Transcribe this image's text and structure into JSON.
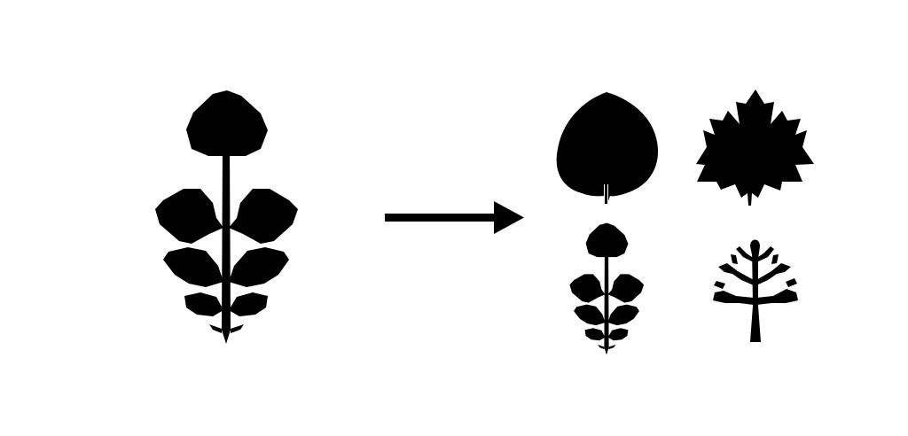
{
  "figure": {
    "background": "#ffffff",
    "fill": "#000000",
    "input_icon": "compound-leaf-icon",
    "arrow_icon": "right-arrow-icon",
    "output_icons": [
      "heart-leaf-icon",
      "maple-leaf-icon",
      "compound-leaf-small-icon",
      "lobed-leaf-icon"
    ]
  }
}
